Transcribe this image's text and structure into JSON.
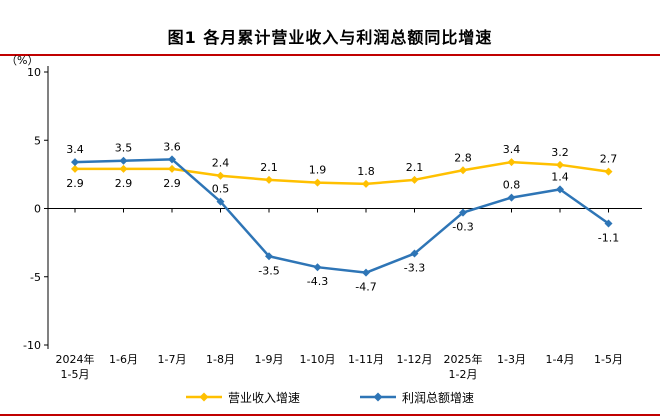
{
  "page": {
    "accent_red": "#c00000"
  },
  "chart_data": {
    "type": "line",
    "title": "图1  各月累计营业收入与利润总额同比增速",
    "unit": "（%）",
    "ylim": [
      -10,
      10
    ],
    "yticks": [
      10,
      5,
      0,
      -5,
      -10
    ],
    "grid": false,
    "legend_position": "bottom",
    "categories": [
      [
        "2024年",
        "1-5月"
      ],
      [
        "1-6月"
      ],
      [
        "1-7月"
      ],
      [
        "1-8月"
      ],
      [
        "1-9月"
      ],
      [
        "1-10月"
      ],
      [
        "1-11月"
      ],
      [
        "1-12月"
      ],
      [
        "2025年",
        "1-2月"
      ],
      [
        "1-3月"
      ],
      [
        "1-4月"
      ],
      [
        "1-5月"
      ]
    ],
    "series": [
      {
        "name": "营业收入增速",
        "color": "#ffc000",
        "values": [
          2.9,
          2.9,
          2.9,
          2.4,
          2.1,
          1.9,
          1.8,
          2.1,
          2.8,
          3.4,
          3.2,
          2.7
        ],
        "label_positions": [
          "below",
          "below",
          "below",
          "above",
          "above",
          "above",
          "above",
          "above",
          "above",
          "above",
          "above",
          "above"
        ]
      },
      {
        "name": "利润总额增速",
        "color": "#2e75b6",
        "values": [
          3.4,
          3.5,
          3.6,
          0.5,
          -3.5,
          -4.3,
          -4.7,
          -3.3,
          -0.3,
          0.8,
          1.4,
          -1.1
        ],
        "label_positions": [
          "above",
          "above",
          "above",
          "above",
          "below",
          "below",
          "below",
          "below",
          "below",
          "above",
          "above",
          "below"
        ]
      }
    ]
  }
}
